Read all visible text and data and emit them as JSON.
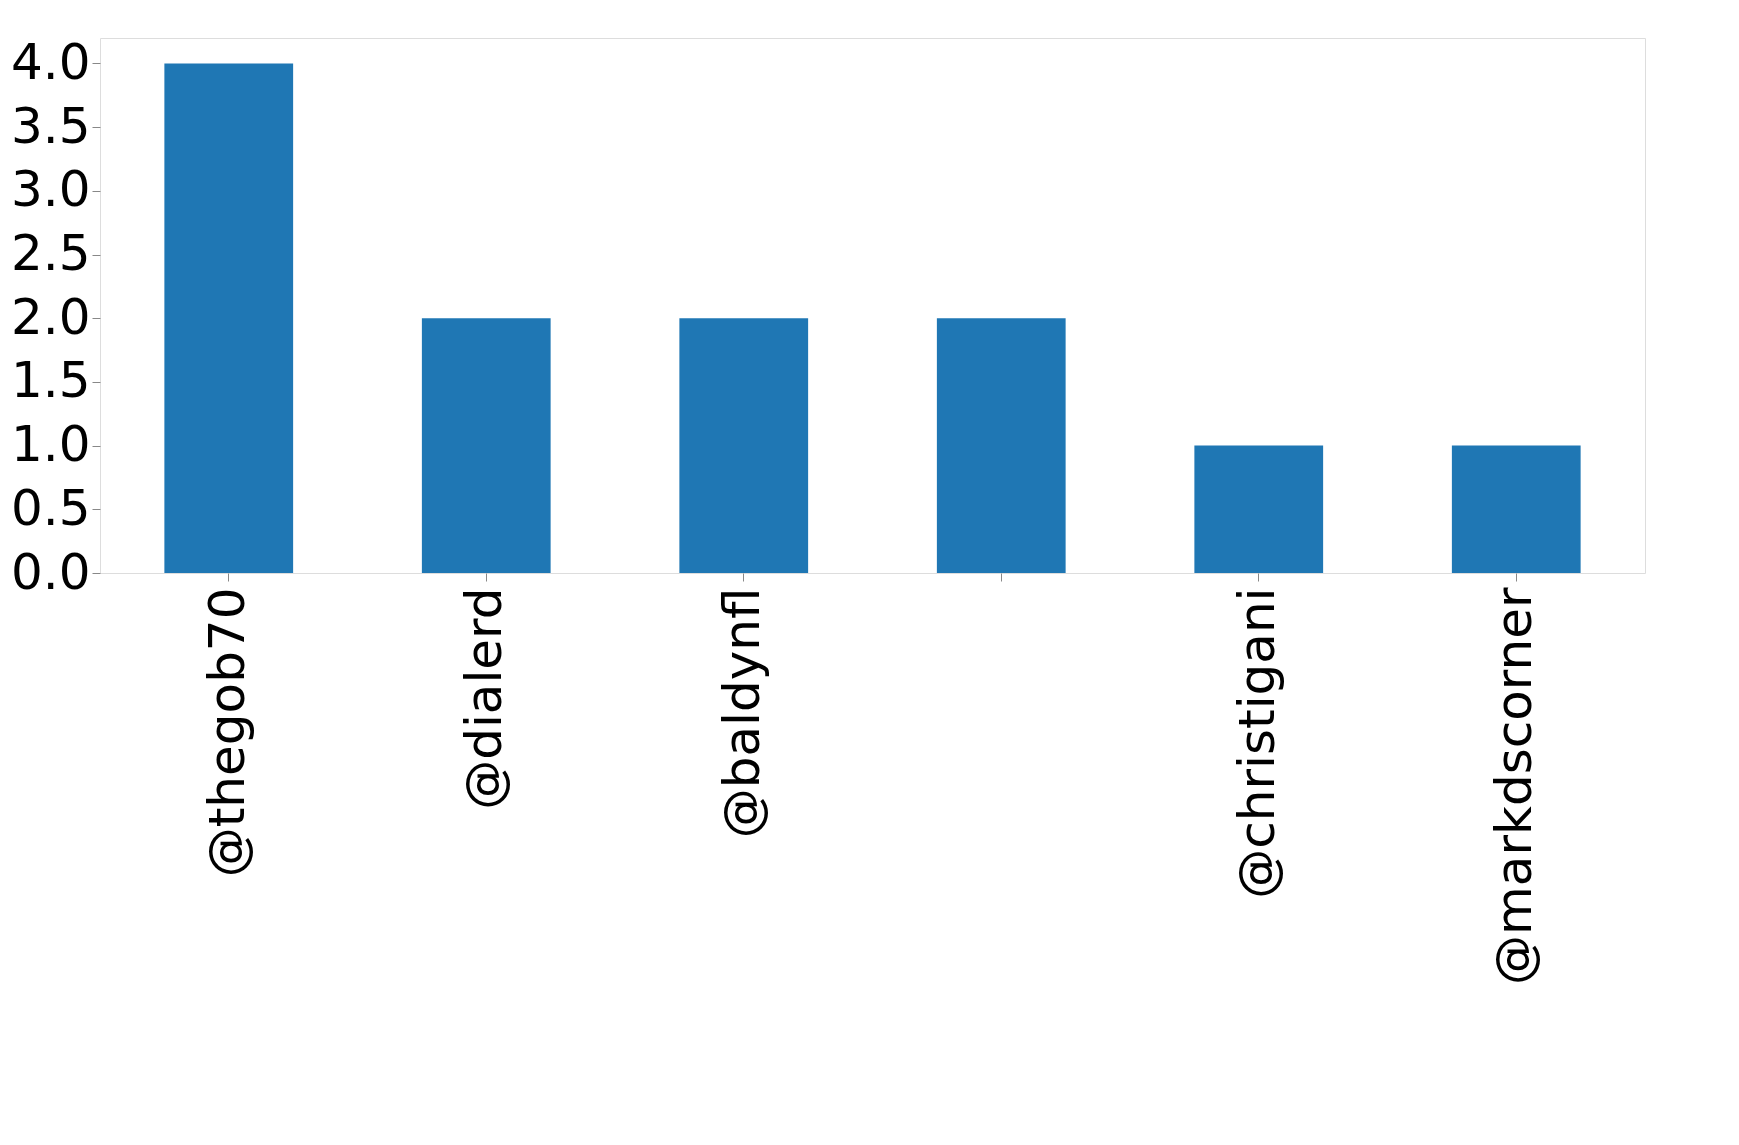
{
  "chart_data": {
    "type": "bar",
    "categories": [
      "@thegob70",
      "@dialerd",
      "@baldynfl",
      null,
      "@christigani",
      "@markdscorner"
    ],
    "values": [
      4,
      2,
      2,
      2,
      1,
      1
    ],
    "color": "#1f77b4",
    "ylim": [
      0,
      4.2
    ],
    "yticks": [
      {
        "value": 0,
        "label": "0.0"
      },
      {
        "value": 0.5,
        "label": "0.5"
      },
      {
        "value": 1,
        "label": "1.0"
      },
      {
        "value": 1.5,
        "label": "1.5"
      },
      {
        "value": 2,
        "label": "2.0"
      },
      {
        "value": 2.5,
        "label": "2.5"
      },
      {
        "value": 3,
        "label": "3.0"
      },
      {
        "value": 3.5,
        "label": "3.5"
      },
      {
        "value": 4,
        "label": "4.0"
      }
    ],
    "grid": false
  }
}
